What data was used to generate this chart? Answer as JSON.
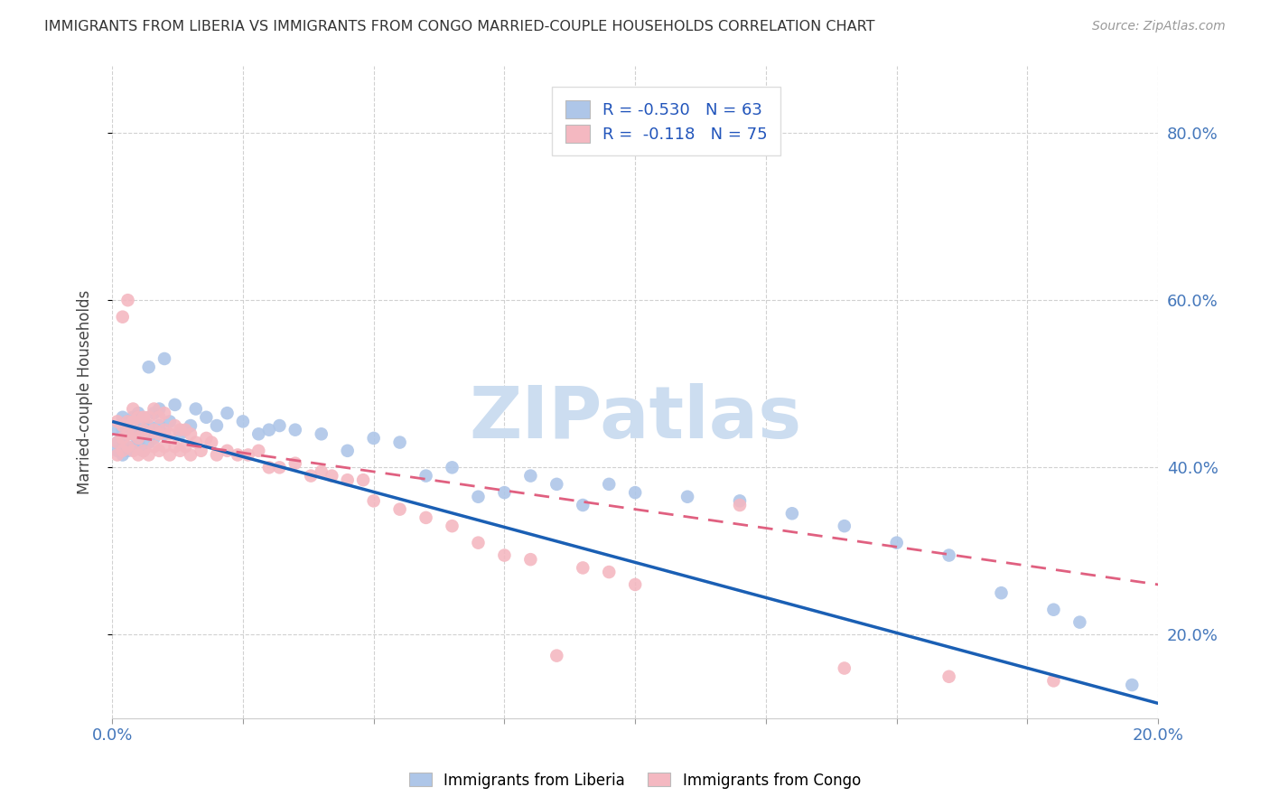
{
  "title": "IMMIGRANTS FROM LIBERIA VS IMMIGRANTS FROM CONGO MARRIED-COUPLE HOUSEHOLDS CORRELATION CHART",
  "source": "Source: ZipAtlas.com",
  "ylabel": "Married-couple Households",
  "ytick_labels": [
    "20.0%",
    "40.0%",
    "60.0%",
    "80.0%"
  ],
  "ytick_values": [
    0.2,
    0.4,
    0.6,
    0.8
  ],
  "xlim": [
    0.0,
    0.2
  ],
  "ylim": [
    0.1,
    0.88
  ],
  "liberia_R": -0.53,
  "liberia_N": 63,
  "congo_R": -0.118,
  "congo_N": 75,
  "liberia_color": "#aec6e8",
  "congo_color": "#f4b8c1",
  "liberia_line_color": "#1a5fb4",
  "congo_line_color": "#e06080",
  "watermark": "ZIPatlas",
  "watermark_color": "#ccddf0",
  "liberia_line_y0": 0.455,
  "liberia_line_y1": 0.118,
  "congo_line_y0": 0.44,
  "congo_line_y1": 0.26,
  "liberia_x": [
    0.001,
    0.001,
    0.001,
    0.002,
    0.002,
    0.002,
    0.002,
    0.003,
    0.003,
    0.003,
    0.004,
    0.004,
    0.004,
    0.005,
    0.005,
    0.005,
    0.006,
    0.006,
    0.007,
    0.007,
    0.007,
    0.008,
    0.008,
    0.009,
    0.009,
    0.01,
    0.01,
    0.011,
    0.012,
    0.013,
    0.015,
    0.016,
    0.018,
    0.02,
    0.022,
    0.025,
    0.028,
    0.03,
    0.032,
    0.035,
    0.04,
    0.045,
    0.05,
    0.055,
    0.06,
    0.065,
    0.07,
    0.075,
    0.08,
    0.085,
    0.09,
    0.095,
    0.1,
    0.11,
    0.12,
    0.13,
    0.14,
    0.15,
    0.16,
    0.17,
    0.18,
    0.185,
    0.195
  ],
  "liberia_y": [
    0.42,
    0.43,
    0.445,
    0.415,
    0.43,
    0.445,
    0.46,
    0.42,
    0.44,
    0.455,
    0.425,
    0.44,
    0.46,
    0.43,
    0.445,
    0.465,
    0.42,
    0.455,
    0.43,
    0.45,
    0.52,
    0.435,
    0.465,
    0.45,
    0.47,
    0.44,
    0.53,
    0.455,
    0.475,
    0.44,
    0.45,
    0.47,
    0.46,
    0.45,
    0.465,
    0.455,
    0.44,
    0.445,
    0.45,
    0.445,
    0.44,
    0.42,
    0.435,
    0.43,
    0.39,
    0.4,
    0.365,
    0.37,
    0.39,
    0.38,
    0.355,
    0.38,
    0.37,
    0.365,
    0.36,
    0.345,
    0.33,
    0.31,
    0.295,
    0.25,
    0.23,
    0.215,
    0.14
  ],
  "congo_x": [
    0.001,
    0.001,
    0.001,
    0.002,
    0.002,
    0.002,
    0.002,
    0.003,
    0.003,
    0.003,
    0.003,
    0.004,
    0.004,
    0.004,
    0.004,
    0.005,
    0.005,
    0.005,
    0.006,
    0.006,
    0.006,
    0.007,
    0.007,
    0.007,
    0.008,
    0.008,
    0.008,
    0.009,
    0.009,
    0.009,
    0.01,
    0.01,
    0.01,
    0.011,
    0.011,
    0.012,
    0.012,
    0.013,
    0.013,
    0.014,
    0.014,
    0.015,
    0.015,
    0.016,
    0.017,
    0.018,
    0.019,
    0.02,
    0.022,
    0.024,
    0.026,
    0.028,
    0.03,
    0.032,
    0.035,
    0.038,
    0.04,
    0.042,
    0.045,
    0.048,
    0.05,
    0.055,
    0.06,
    0.065,
    0.07,
    0.075,
    0.08,
    0.085,
    0.09,
    0.095,
    0.1,
    0.12,
    0.14,
    0.16,
    0.18
  ],
  "congo_y": [
    0.415,
    0.43,
    0.455,
    0.42,
    0.435,
    0.45,
    0.58,
    0.425,
    0.44,
    0.455,
    0.6,
    0.42,
    0.44,
    0.455,
    0.47,
    0.415,
    0.435,
    0.46,
    0.42,
    0.445,
    0.46,
    0.415,
    0.44,
    0.46,
    0.425,
    0.445,
    0.47,
    0.42,
    0.44,
    0.46,
    0.425,
    0.445,
    0.465,
    0.415,
    0.44,
    0.425,
    0.45,
    0.42,
    0.445,
    0.425,
    0.445,
    0.415,
    0.44,
    0.43,
    0.42,
    0.435,
    0.43,
    0.415,
    0.42,
    0.415,
    0.415,
    0.42,
    0.4,
    0.4,
    0.405,
    0.39,
    0.395,
    0.39,
    0.385,
    0.385,
    0.36,
    0.35,
    0.34,
    0.33,
    0.31,
    0.295,
    0.29,
    0.175,
    0.28,
    0.275,
    0.26,
    0.355,
    0.16,
    0.15,
    0.145
  ]
}
